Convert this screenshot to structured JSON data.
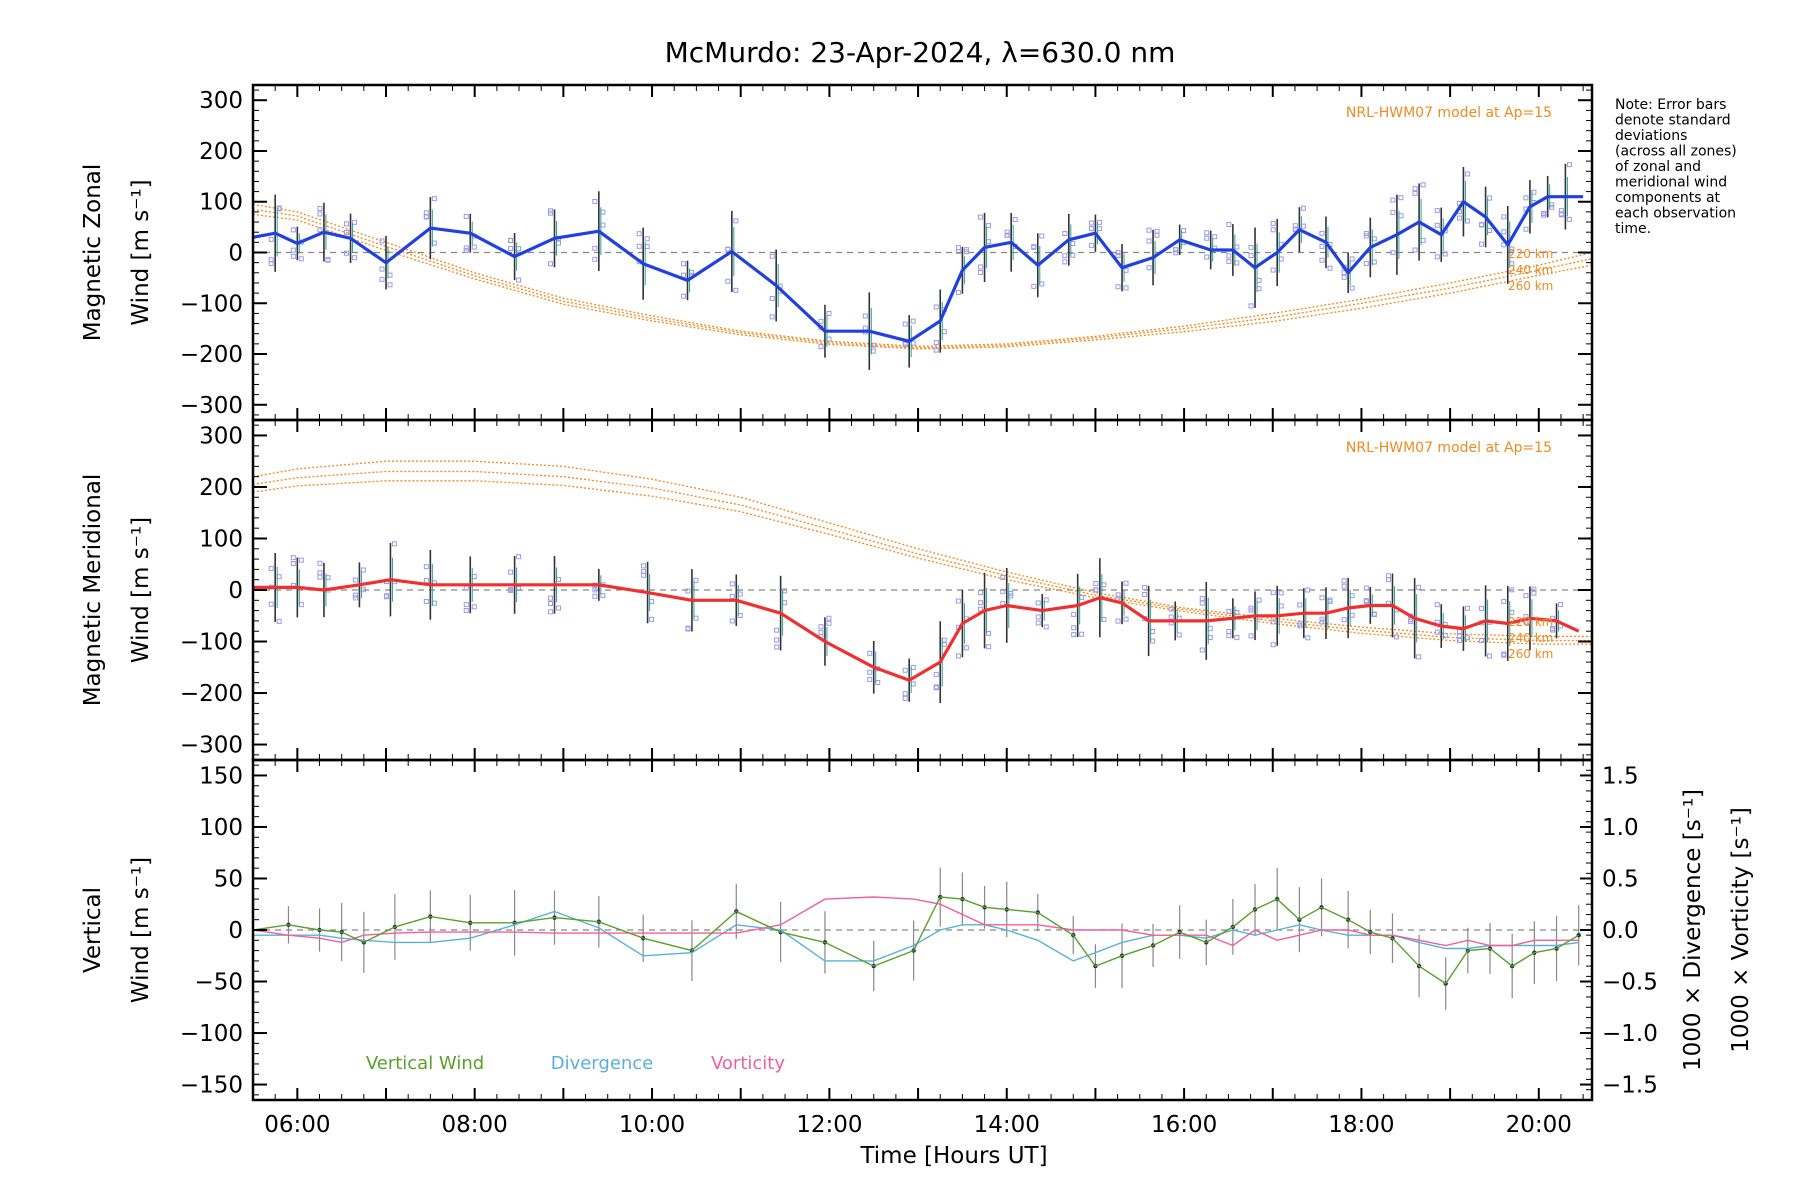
{
  "title": "McMurdo: 23-Apr-2024, λ=630.0 nm",
  "note": [
    "Note: Error bars",
    "denote standard",
    "deviations",
    "(across all zones)",
    "of zonal and",
    "meridional wind",
    "components at",
    "each observation",
    "time."
  ],
  "x_axis": {
    "label": "Time [Hours UT]",
    "range": [
      5.5,
      20.6
    ],
    "ticks": [
      6,
      8,
      10,
      12,
      14,
      16,
      18,
      20
    ],
    "tick_labels": [
      "06:00",
      "08:00",
      "10:00",
      "12:00",
      "14:00",
      "16:00",
      "18:00",
      "20:00"
    ]
  },
  "colors": {
    "zonal": "#2040e0",
    "meridional": "#f03030",
    "model": "#f08a24",
    "vertical": "#5aa02c",
    "divergence": "#5ab0d8",
    "vorticity": "#f0609a",
    "points": "#9a9ae8",
    "errorbar": "#333333",
    "zero_line": "#888888"
  },
  "chart_data": [
    {
      "type": "line",
      "panel": "zonal",
      "ylabel_line1": "Magnetic Zonal",
      "ylabel_line2": "Wind [m s⁻¹]",
      "ylim": [
        -330,
        330
      ],
      "yticks": [
        -300,
        -200,
        -100,
        0,
        100,
        200,
        300
      ],
      "ytick_labels": [
        "−300",
        "−200",
        "−100",
        "0",
        "100",
        "200",
        "300"
      ],
      "model_label": "NRL-HWM07 model at Ap=15",
      "alt_labels": [
        "220 km",
        "240 km",
        "260 km"
      ],
      "x": [
        5.5,
        5.75,
        6.0,
        6.3,
        6.6,
        7.0,
        7.5,
        7.95,
        8.45,
        8.9,
        9.4,
        9.9,
        10.4,
        10.9,
        11.4,
        11.95,
        12.45,
        12.9,
        13.25,
        13.5,
        13.75,
        14.05,
        14.35,
        14.7,
        15.0,
        15.3,
        15.65,
        15.95,
        16.3,
        16.55,
        16.8,
        17.05,
        17.3,
        17.6,
        17.85,
        18.1,
        18.4,
        18.65,
        18.9,
        19.15,
        19.4,
        19.65,
        19.9,
        20.1,
        20.3,
        20.5
      ],
      "series": [
        {
          "name": "",
          "values": [
            30,
            38,
            18,
            40,
            28,
            -20,
            48,
            38,
            -8,
            28,
            42,
            -22,
            -55,
            2,
            -65,
            -155,
            -155,
            -175,
            -135,
            -35,
            10,
            20,
            -25,
            25,
            38,
            -30,
            -10,
            25,
            5,
            5,
            -30,
            0,
            45,
            20,
            -40,
            10,
            35,
            60,
            35,
            100,
            70,
            15,
            90,
            110,
            110,
            110
          ]
        }
      ],
      "model_x": [
        5.5,
        6.0,
        7.0,
        8.0,
        9.0,
        10.0,
        11.0,
        12.0,
        13.0,
        14.0,
        15.0,
        16.0,
        17.0,
        18.0,
        19.0,
        20.0,
        20.6
      ],
      "model_series": [
        {
          "name": "220 km",
          "values": [
            95,
            80,
            20,
            -40,
            -90,
            -125,
            -155,
            -175,
            -185,
            -180,
            -165,
            -145,
            -120,
            -92,
            -60,
            -25,
            0
          ]
        },
        {
          "name": "240 km",
          "values": [
            85,
            72,
            12,
            -46,
            -96,
            -130,
            -158,
            -178,
            -188,
            -183,
            -168,
            -150,
            -128,
            -100,
            -70,
            -35,
            -12
          ]
        },
        {
          "name": "260 km",
          "values": [
            75,
            64,
            4,
            -52,
            -102,
            -135,
            -162,
            -181,
            -190,
            -186,
            -172,
            -156,
            -136,
            -110,
            -80,
            -45,
            -25
          ]
        }
      ]
    },
    {
      "type": "line",
      "panel": "meridional",
      "ylabel_line1": "Magnetic Meridional",
      "ylabel_line2": "Wind [m s⁻¹]",
      "ylim": [
        -330,
        330
      ],
      "yticks": [
        -300,
        -200,
        -100,
        0,
        100,
        200,
        300
      ],
      "ytick_labels": [
        "−300",
        "−200",
        "−100",
        "0",
        "100",
        "200",
        "300"
      ],
      "model_label": "NRL-HWM07 model at Ap=15",
      "alt_labels": [
        "220 km",
        "240 km",
        "260 km"
      ],
      "x": [
        5.5,
        5.75,
        6.0,
        6.3,
        6.7,
        7.05,
        7.5,
        7.95,
        8.45,
        8.9,
        9.4,
        9.95,
        10.45,
        10.95,
        11.45,
        11.95,
        12.5,
        12.9,
        13.25,
        13.5,
        13.75,
        14.0,
        14.4,
        14.8,
        15.05,
        15.3,
        15.6,
        15.9,
        16.25,
        16.55,
        16.8,
        17.05,
        17.35,
        17.6,
        17.85,
        18.1,
        18.35,
        18.6,
        18.9,
        19.15,
        19.4,
        19.65,
        19.9,
        20.2,
        20.45
      ],
      "series": [
        {
          "name": "",
          "values": [
            5,
            5,
            5,
            0,
            10,
            20,
            10,
            10,
            10,
            10,
            10,
            -5,
            -20,
            -20,
            -45,
            -100,
            -150,
            -175,
            -140,
            -65,
            -40,
            -30,
            -40,
            -30,
            -15,
            -25,
            -60,
            -60,
            -60,
            -55,
            -50,
            -50,
            -45,
            -45,
            -35,
            -30,
            -30,
            -55,
            -70,
            -75,
            -60,
            -65,
            -55,
            -60,
            -80
          ]
        }
      ],
      "model_x": [
        5.5,
        6.0,
        7.0,
        8.0,
        9.0,
        10.0,
        11.0,
        12.0,
        13.0,
        14.0,
        15.0,
        16.0,
        17.0,
        18.0,
        19.0,
        20.0,
        20.6
      ],
      "model_series": [
        {
          "name": "220 km",
          "values": [
            220,
            235,
            250,
            250,
            240,
            215,
            180,
            130,
            80,
            35,
            -5,
            -35,
            -55,
            -72,
            -85,
            -90,
            -90
          ]
        },
        {
          "name": "240 km",
          "values": [
            205,
            218,
            230,
            230,
            220,
            198,
            165,
            118,
            70,
            28,
            -10,
            -38,
            -60,
            -78,
            -92,
            -98,
            -98
          ]
        },
        {
          "name": "260 km",
          "values": [
            190,
            202,
            212,
            212,
            203,
            182,
            152,
            108,
            62,
            20,
            -15,
            -42,
            -65,
            -84,
            -98,
            -105,
            -105
          ]
        }
      ]
    },
    {
      "type": "line",
      "panel": "vertical",
      "ylabel_line1": "Vertical",
      "ylabel_line2": "Wind [m s⁻¹]",
      "ylim": [
        -165,
        165
      ],
      "yticks": [
        -150,
        -100,
        -50,
        0,
        50,
        100,
        150
      ],
      "ytick_labels": [
        "−150",
        "−100",
        "−50",
        "0",
        "50",
        "100",
        "150"
      ],
      "y2label_divergence": "1000 × Divergence [s⁻¹]",
      "y2label_vorticity": "1000 × Vorticity [s⁻¹]",
      "y2lim": [
        -1.65,
        1.65
      ],
      "y2ticks": [
        -1.5,
        -1.0,
        -0.5,
        0.0,
        0.5,
        1.0,
        1.5
      ],
      "y2tick_labels": [
        "−1.5",
        "−1.0",
        "−0.5",
        "0.0",
        "0.5",
        "1.0",
        "1.5"
      ],
      "legend": [
        "Vertical Wind",
        "Divergence",
        "Vorticity"
      ],
      "x": [
        5.5,
        5.9,
        6.25,
        6.5,
        6.75,
        7.1,
        7.5,
        7.95,
        8.45,
        8.9,
        9.4,
        9.9,
        10.45,
        10.95,
        11.45,
        11.95,
        12.5,
        12.95,
        13.25,
        13.5,
        13.75,
        14.0,
        14.35,
        14.75,
        15.0,
        15.3,
        15.65,
        15.95,
        16.25,
        16.55,
        16.8,
        17.05,
        17.3,
        17.55,
        17.85,
        18.1,
        18.35,
        18.65,
        18.95,
        19.2,
        19.45,
        19.7,
        19.95,
        20.2,
        20.45
      ],
      "series": [
        {
          "name": "Vertical Wind",
          "values": [
            0,
            5,
            0,
            -2,
            -12,
            3,
            13,
            7,
            7,
            12,
            8,
            -8,
            -20,
            18,
            -2,
            -12,
            -35,
            -20,
            32,
            30,
            22,
            20,
            17,
            -5,
            -35,
            -25,
            -15,
            -2,
            -12,
            3,
            20,
            30,
            10,
            22,
            10,
            -2,
            -8,
            -35,
            -52,
            -20,
            -18,
            -35,
            -22,
            -18,
            -5
          ]
        },
        {
          "name": "Divergence",
          "values": [
            -0.05,
            -0.05,
            -0.05,
            -0.08,
            -0.1,
            -0.12,
            -0.12,
            -0.08,
            0.05,
            0.18,
            0.02,
            -0.25,
            -0.22,
            0.05,
            0.0,
            -0.3,
            -0.3,
            -0.15,
            0.0,
            0.05,
            0.05,
            0.0,
            -0.1,
            -0.3,
            -0.22,
            -0.12,
            -0.05,
            -0.05,
            -0.08,
            0.0,
            -0.05,
            0.0,
            0.05,
            0.0,
            -0.05,
            -0.05,
            -0.05,
            -0.12,
            -0.18,
            -0.18,
            -0.15,
            -0.15,
            -0.15,
            -0.15,
            -0.12
          ]
        },
        {
          "name": "Vorticity",
          "values": [
            0.0,
            -0.05,
            -0.08,
            -0.12,
            -0.05,
            -0.03,
            -0.02,
            -0.02,
            -0.02,
            -0.03,
            -0.03,
            -0.03,
            -0.03,
            -0.03,
            0.05,
            0.3,
            0.32,
            0.3,
            0.25,
            0.15,
            0.05,
            0.05,
            0.05,
            0.0,
            0.0,
            0.0,
            -0.05,
            -0.05,
            -0.05,
            -0.15,
            0.0,
            -0.1,
            -0.05,
            0.0,
            0.0,
            -0.05,
            -0.05,
            -0.1,
            -0.15,
            -0.1,
            -0.15,
            -0.15,
            -0.1,
            -0.1,
            -0.1
          ]
        }
      ]
    }
  ]
}
